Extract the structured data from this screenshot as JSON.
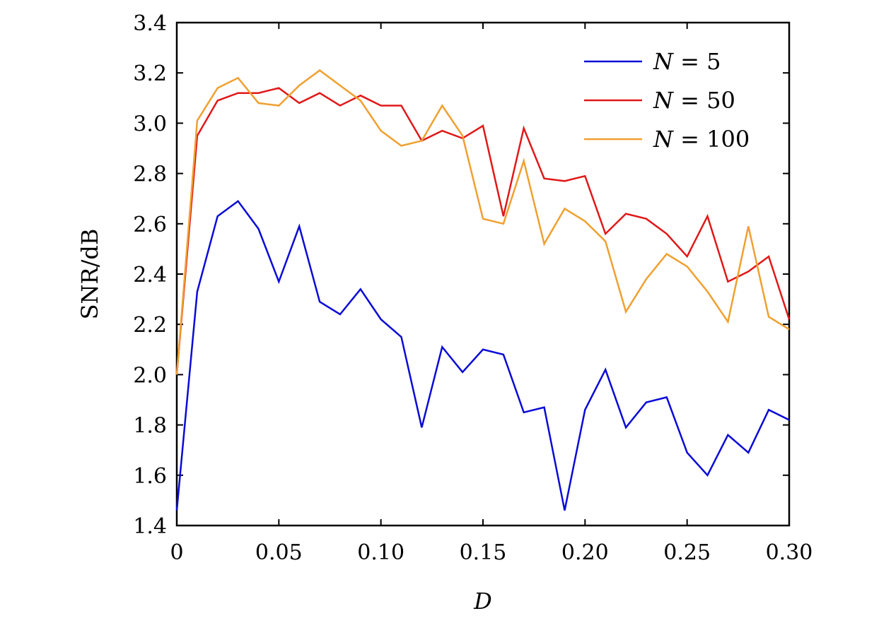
{
  "chart_data": {
    "type": "line",
    "xlabel": "D",
    "ylabel": "SNR/dB",
    "xlim": [
      0,
      0.3
    ],
    "ylim": [
      1.4,
      3.4
    ],
    "x_ticks": [
      0,
      0.05,
      0.1,
      0.15,
      0.2,
      0.25,
      0.3
    ],
    "x_tick_labels": [
      "0",
      "0.05",
      "0.10",
      "0.15",
      "0.20",
      "0.25",
      "0.30"
    ],
    "y_ticks": [
      1.4,
      1.6,
      1.8,
      2.0,
      2.2,
      2.4,
      2.6,
      2.8,
      3.0,
      3.2,
      3.4
    ],
    "y_tick_labels": [
      "1.4",
      "1.6",
      "1.8",
      "2.0",
      "2.2",
      "2.4",
      "2.6",
      "2.8",
      "3.0",
      "3.2",
      "3.4"
    ],
    "legend_position": "top-right",
    "grid": false,
    "x": [
      0,
      0.01,
      0.02,
      0.03,
      0.04,
      0.05,
      0.06,
      0.07,
      0.08,
      0.09,
      0.1,
      0.11,
      0.12,
      0.13,
      0.14,
      0.15,
      0.16,
      0.17,
      0.18,
      0.19,
      0.2,
      0.21,
      0.22,
      0.23,
      0.24,
      0.25,
      0.26,
      0.27,
      0.28,
      0.29,
      0.3
    ],
    "series": [
      {
        "name": "N = 5",
        "legend_var": "N",
        "legend_rest": " = 5",
        "color": "#0a0ad6",
        "values": [
          1.46,
          2.33,
          2.63,
          2.69,
          2.58,
          2.37,
          2.59,
          2.29,
          2.24,
          2.34,
          2.22,
          2.15,
          1.79,
          2.11,
          2.01,
          2.1,
          2.08,
          1.85,
          1.87,
          1.46,
          1.86,
          2.02,
          1.79,
          1.89,
          1.91,
          1.69,
          1.6,
          1.76,
          1.69,
          1.86,
          1.82
        ]
      },
      {
        "name": "N = 50",
        "legend_var": "N",
        "legend_rest": " = 50",
        "color": "#e01818",
        "values": [
          2.0,
          2.95,
          3.09,
          3.12,
          3.12,
          3.14,
          3.08,
          3.12,
          3.07,
          3.11,
          3.07,
          3.07,
          2.93,
          2.97,
          2.94,
          2.99,
          2.63,
          2.98,
          2.78,
          2.77,
          2.79,
          2.56,
          2.64,
          2.62,
          2.56,
          2.47,
          2.63,
          2.37,
          2.41,
          2.47,
          2.22
        ]
      },
      {
        "name": "N = 100",
        "legend_var": "N",
        "legend_rest": " = 100",
        "color": "#f0a030",
        "values": [
          2.0,
          3.01,
          3.14,
          3.18,
          3.08,
          3.07,
          3.15,
          3.21,
          3.15,
          3.09,
          2.97,
          2.91,
          2.93,
          3.07,
          2.95,
          2.62,
          2.6,
          2.85,
          2.52,
          2.66,
          2.61,
          2.53,
          2.25,
          2.38,
          2.48,
          2.43,
          2.33,
          2.21,
          2.59,
          2.23,
          2.18
        ]
      }
    ]
  }
}
